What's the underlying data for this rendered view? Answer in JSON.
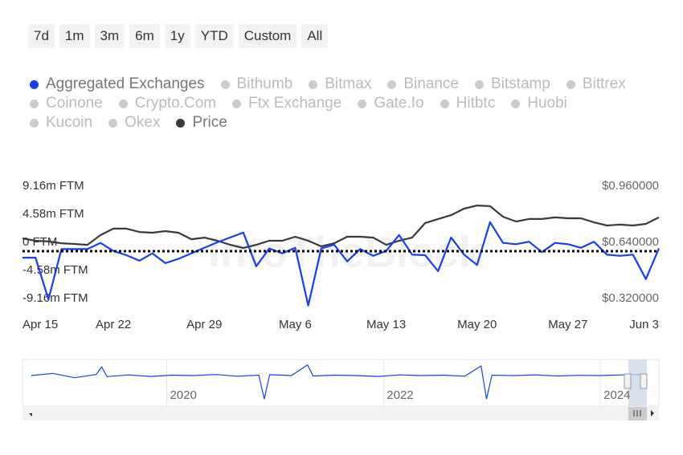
{
  "range_buttons": [
    "7d",
    "1m",
    "3m",
    "6m",
    "1y",
    "YTD",
    "Custom",
    "All"
  ],
  "inactive_series": [
    "Bithumb",
    "Bitmax",
    "Binance",
    "Bitstamp",
    "Bittrex",
    "Coinone",
    "Crypto.Com",
    "Ftx Exchange",
    "Gate.Io",
    "Hitbtc",
    "Huobi",
    "Kucoin",
    "Okex"
  ],
  "watermark": "IntoTheBlock",
  "chart_data": {
    "type": "line",
    "categories": [
      "Apr 15",
      null,
      null,
      null,
      null,
      null,
      null,
      "Apr 22",
      null,
      null,
      null,
      null,
      null,
      null,
      "Apr 29",
      null,
      null,
      null,
      null,
      null,
      null,
      "May 6",
      null,
      null,
      null,
      null,
      null,
      null,
      "May 13",
      null,
      null,
      null,
      null,
      null,
      null,
      "May 20",
      null,
      null,
      null,
      null,
      null,
      null,
      "May 27",
      null,
      null,
      null,
      null,
      null,
      null,
      "Jun 3"
    ],
    "series": [
      {
        "name": "Aggregated Exchanges",
        "color": "#1a3cf5",
        "axis": "y",
        "values": [
          -2.5,
          -2.5,
          -9.3,
          -1.1,
          -1.1,
          -1.1,
          -0.1,
          -1.4,
          -2.1,
          -3.0,
          -1.8,
          -3.4,
          -2.7,
          -1.8,
          -0.9,
          0,
          0.8,
          1.6,
          -3.9,
          -1.0,
          -1.8,
          -0.9,
          -10.3,
          -1.0,
          -0.4,
          -3.1,
          -1.1,
          -2.2,
          -1.4,
          1.2,
          -2.0,
          -2.1,
          -4.7,
          0.8,
          -2.0,
          -3.7,
          3.3,
          -0.1,
          -0.3,
          0.1,
          -1.6,
          -0.1,
          -0.3,
          -0.9,
          0.1,
          -2.0,
          -2.2,
          -2.0,
          -6.0,
          -1.0
        ]
      },
      {
        "name": "Price",
        "color": "#3a3a3e",
        "axis": "y2",
        "values": [
          0.663,
          0.649,
          0.645,
          0.635,
          0.631,
          0.626,
          0.681,
          0.718,
          0.718,
          0.699,
          0.695,
          0.704,
          0.695,
          0.658,
          0.667,
          0.649,
          0.626,
          0.608,
          0.626,
          0.649,
          0.649,
          0.672,
          0.649,
          0.617,
          0.635,
          0.672,
          0.672,
          0.667,
          0.626,
          0.649,
          0.667,
          0.75,
          0.773,
          0.795,
          0.832,
          0.85,
          0.846,
          0.786,
          0.759,
          0.773,
          0.773,
          0.782,
          0.777,
          0.777,
          0.754,
          0.736,
          0.741,
          0.736,
          0.745,
          0.782
        ]
      }
    ],
    "ylim": [
      -11,
      9.16
    ],
    "yticks": [
      {
        "value": 9.16,
        "label": "9.16m FTM"
      },
      {
        "value": 4.58,
        "label": "4.58m FTM"
      },
      {
        "value": 0,
        "label": "0 FTM"
      },
      {
        "value": -4.58,
        "label": "-4.58m FTM"
      },
      {
        "value": -9.16,
        "label": "-9.16m FTM"
      }
    ],
    "y2lim": [
      0.256,
      0.96
    ],
    "y2ticks": [
      {
        "value": 0.96,
        "label": "$0.960000"
      },
      {
        "value": 0.64,
        "label": "$0.640000"
      },
      {
        "value": 0.32,
        "label": "$0.320000"
      }
    ],
    "reference_line": {
      "value": -1.44,
      "color": "#000000"
    },
    "grid": false
  },
  "navigator": {
    "type": "line",
    "color": "#1a3cf5",
    "x": [
      2018.75,
      2018.95,
      2019.15,
      2019.35,
      2019.4,
      2019.45,
      2019.65,
      2019.85,
      2020.05,
      2020.25,
      2020.45,
      2020.65,
      2020.85,
      2020.9,
      2020.95,
      2021.15,
      2021.3,
      2021.35,
      2021.55,
      2021.75,
      2021.95,
      2022.15,
      2022.35,
      2022.55,
      2022.75,
      2022.9,
      2022.95,
      2023.0,
      2023.2,
      2023.4,
      2023.6,
      2023.8,
      2024.0,
      2024.2,
      2024.37
    ],
    "values": [
      0,
      1,
      -1,
      0.5,
      4,
      -0.5,
      0.3,
      -0.4,
      0.2,
      0,
      0.5,
      -0.3,
      0.2,
      -11,
      0.4,
      0,
      5,
      -0.2,
      0.2,
      0,
      -0.4,
      0.3,
      0,
      0.2,
      -0.3,
      4.5,
      -11,
      0.2,
      0,
      0.3,
      -0.2,
      0.1,
      0,
      0.3,
      0.5
    ],
    "xlim": [
      2018.67,
      2024.54
    ],
    "ylim": [
      -12,
      6
    ],
    "xticks": [
      2020,
      2022,
      2024
    ]
  }
}
